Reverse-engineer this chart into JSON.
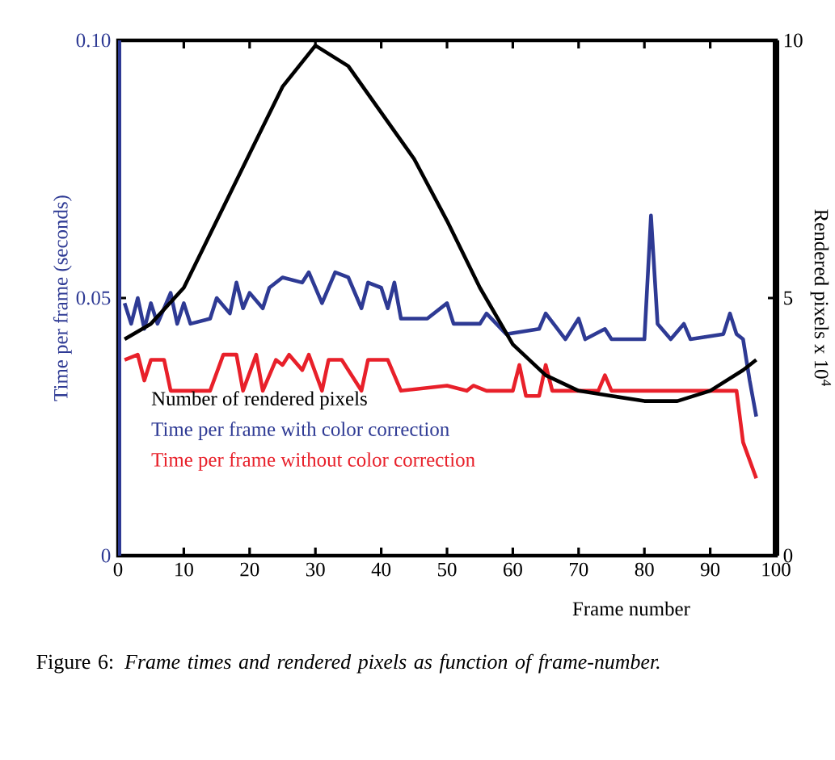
{
  "chart_data": {
    "type": "line",
    "xlabel": "Frame number",
    "ylabel": "Time per frame (seconds)",
    "y2label": "Rendered pixels x 10$^{4}$",
    "xlim": [
      0,
      100
    ],
    "xticks": [
      0,
      10,
      20,
      30,
      40,
      50,
      60,
      70,
      80,
      90,
      100
    ],
    "ylim": [
      0,
      0.1
    ],
    "yticks": [
      0,
      0.05,
      {
        "value": 0.1,
        "label": "0.10"
      }
    ],
    "y2lim": [
      0,
      10
    ],
    "y2ticks": [
      0,
      5,
      10
    ],
    "legend": "bottom left",
    "grid": false,
    "annotations": [
      "Figure 6: *Frame times and rendered pixels as function of frame-number.*"
    ],
    "series": [
      {
        "name": "Number of rendered pixels",
        "color": "#000000",
        "axis": "y2",
        "x": [
          1,
          5,
          10,
          15,
          20,
          25,
          30,
          35,
          40,
          45,
          50,
          55,
          60,
          65,
          70,
          75,
          80,
          85,
          90,
          95,
          97
        ],
        "values": [
          4.2,
          4.5,
          5.2,
          6.5,
          7.8,
          9.1,
          9.9,
          9.5,
          8.6,
          7.7,
          6.5,
          5.2,
          4.1,
          3.5,
          3.2,
          3.1,
          3.0,
          3.0,
          3.2,
          3.6,
          3.8
        ]
      },
      {
        "name": "Time per frame with color correction",
        "color": "#2e3a94",
        "x": [
          1,
          2,
          3,
          4,
          5,
          6,
          8,
          9,
          10,
          11,
          14,
          15,
          17,
          18,
          19,
          20,
          22,
          23,
          25,
          28,
          29,
          31,
          33,
          35,
          37,
          38,
          40,
          41,
          42,
          43,
          47,
          50,
          51,
          55,
          56,
          59,
          64,
          65,
          68,
          70,
          71,
          74,
          75,
          80,
          81,
          82,
          84,
          86,
          87,
          92,
          93,
          94,
          95,
          96,
          97
        ],
        "values": [
          0.049,
          0.045,
          0.05,
          0.044,
          0.049,
          0.045,
          0.051,
          0.045,
          0.049,
          0.045,
          0.046,
          0.05,
          0.047,
          0.053,
          0.048,
          0.051,
          0.048,
          0.052,
          0.054,
          0.053,
          0.055,
          0.049,
          0.055,
          0.054,
          0.048,
          0.053,
          0.052,
          0.048,
          0.053,
          0.046,
          0.046,
          0.049,
          0.045,
          0.045,
          0.047,
          0.043,
          0.044,
          0.047,
          0.042,
          0.046,
          0.042,
          0.044,
          0.042,
          0.042,
          0.066,
          0.045,
          0.042,
          0.045,
          0.042,
          0.043,
          0.047,
          0.043,
          0.042,
          0.034,
          0.027
        ]
      },
      {
        "name": "Time per frame without color correction",
        "color": "#e8202a",
        "x": [
          1,
          3,
          4,
          5,
          7,
          8,
          14,
          16,
          18,
          19,
          21,
          22,
          24,
          25,
          26,
          28,
          29,
          31,
          32,
          34,
          37,
          38,
          41,
          43,
          50,
          53,
          54,
          56,
          60,
          61,
          62,
          64,
          65,
          66,
          73,
          74,
          75,
          94,
          95,
          97
        ],
        "values": [
          0.038,
          0.039,
          0.034,
          0.038,
          0.038,
          0.032,
          0.032,
          0.039,
          0.039,
          0.032,
          0.039,
          0.032,
          0.038,
          0.037,
          0.039,
          0.036,
          0.039,
          0.032,
          0.038,
          0.038,
          0.032,
          0.038,
          0.038,
          0.032,
          0.033,
          0.032,
          0.033,
          0.032,
          0.032,
          0.037,
          0.031,
          0.031,
          0.037,
          0.032,
          0.032,
          0.035,
          0.032,
          0.032,
          0.022,
          0.015
        ]
      }
    ]
  }
}
